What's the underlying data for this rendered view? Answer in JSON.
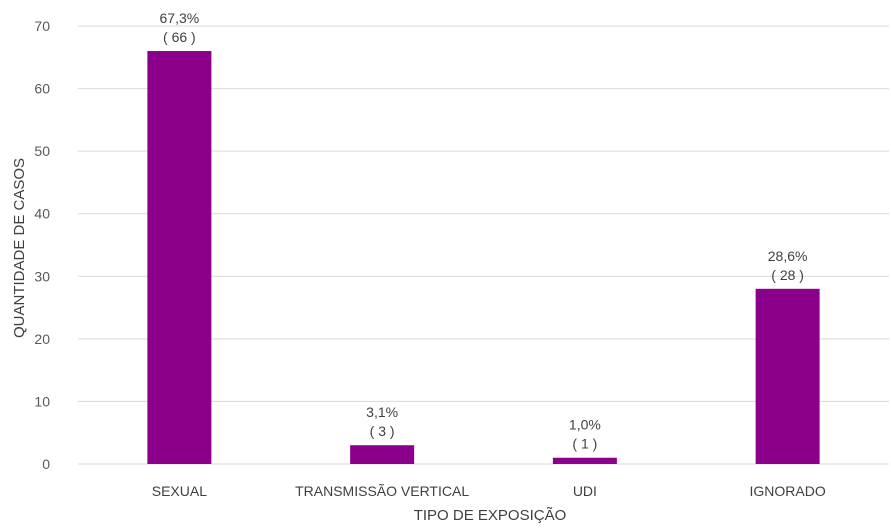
{
  "chart_data": {
    "type": "bar",
    "categories": [
      "SEXUAL",
      "TRANSMISSÃO VERTICAL",
      "UDI",
      "IGNORADO"
    ],
    "values": [
      66,
      3,
      1,
      28
    ],
    "percent_labels": [
      "67,3%",
      "3,1%",
      "1,0%",
      "28,6%"
    ],
    "count_labels": [
      "( 66 )",
      "( 3 )",
      "( 1 )",
      "( 28 )"
    ],
    "title": "",
    "xlabel": "TIPO DE EXPOSIÇÃO",
    "ylabel": "QUANTIDADE DE CASOS",
    "ylim": [
      0,
      70
    ],
    "yticks": [
      0,
      10,
      20,
      30,
      40,
      50,
      60,
      70
    ],
    "grid": true,
    "legend": "none",
    "bar_color": "#8b008b"
  }
}
